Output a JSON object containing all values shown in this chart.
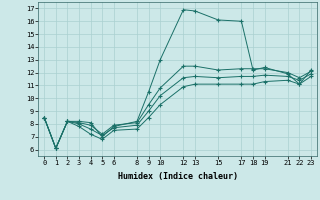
{
  "xlabel": "Humidex (Indice chaleur)",
  "background_color": "#cce8e8",
  "grid_color": "#aad0d0",
  "line_color": "#1a7068",
  "xlim": [
    -0.5,
    23.5
  ],
  "ylim": [
    5.5,
    17.5
  ],
  "xticks": [
    0,
    1,
    2,
    3,
    4,
    5,
    6,
    8,
    9,
    10,
    12,
    13,
    15,
    17,
    18,
    19,
    21,
    22,
    23
  ],
  "yticks": [
    6,
    7,
    8,
    9,
    10,
    11,
    12,
    13,
    14,
    15,
    16,
    17
  ],
  "lines": [
    {
      "x": [
        0,
        1,
        2,
        3,
        4,
        5,
        6,
        8,
        9,
        10,
        12,
        13,
        15,
        17,
        18,
        19,
        21,
        22,
        23
      ],
      "y": [
        8.5,
        6.1,
        8.2,
        8.2,
        8.1,
        7.0,
        7.8,
        8.2,
        10.5,
        13.0,
        16.9,
        16.8,
        16.1,
        16.0,
        12.2,
        12.4,
        11.9,
        11.1,
        12.2
      ]
    },
    {
      "x": [
        0,
        1,
        2,
        3,
        4,
        5,
        6,
        8,
        9,
        10,
        12,
        13,
        15,
        17,
        18,
        19,
        21,
        22,
        23
      ],
      "y": [
        8.5,
        6.1,
        8.2,
        8.1,
        7.9,
        7.2,
        7.9,
        8.1,
        9.5,
        10.8,
        12.5,
        12.5,
        12.2,
        12.3,
        12.3,
        12.3,
        12.0,
        11.6,
        12.1
      ]
    },
    {
      "x": [
        0,
        1,
        2,
        3,
        4,
        5,
        6,
        8,
        9,
        10,
        12,
        13,
        15,
        17,
        18,
        19,
        21,
        22,
        23
      ],
      "y": [
        8.5,
        6.1,
        8.2,
        8.0,
        7.6,
        7.1,
        7.7,
        7.9,
        9.0,
        10.2,
        11.6,
        11.7,
        11.6,
        11.7,
        11.7,
        11.8,
        11.7,
        11.4,
        11.9
      ]
    },
    {
      "x": [
        0,
        1,
        2,
        3,
        4,
        5,
        6,
        8,
        9,
        10,
        12,
        13,
        15,
        17,
        18,
        19,
        21,
        22,
        23
      ],
      "y": [
        8.5,
        6.1,
        8.2,
        7.8,
        7.2,
        6.8,
        7.5,
        7.6,
        8.5,
        9.5,
        10.9,
        11.1,
        11.1,
        11.1,
        11.1,
        11.3,
        11.4,
        11.1,
        11.7
      ]
    }
  ]
}
